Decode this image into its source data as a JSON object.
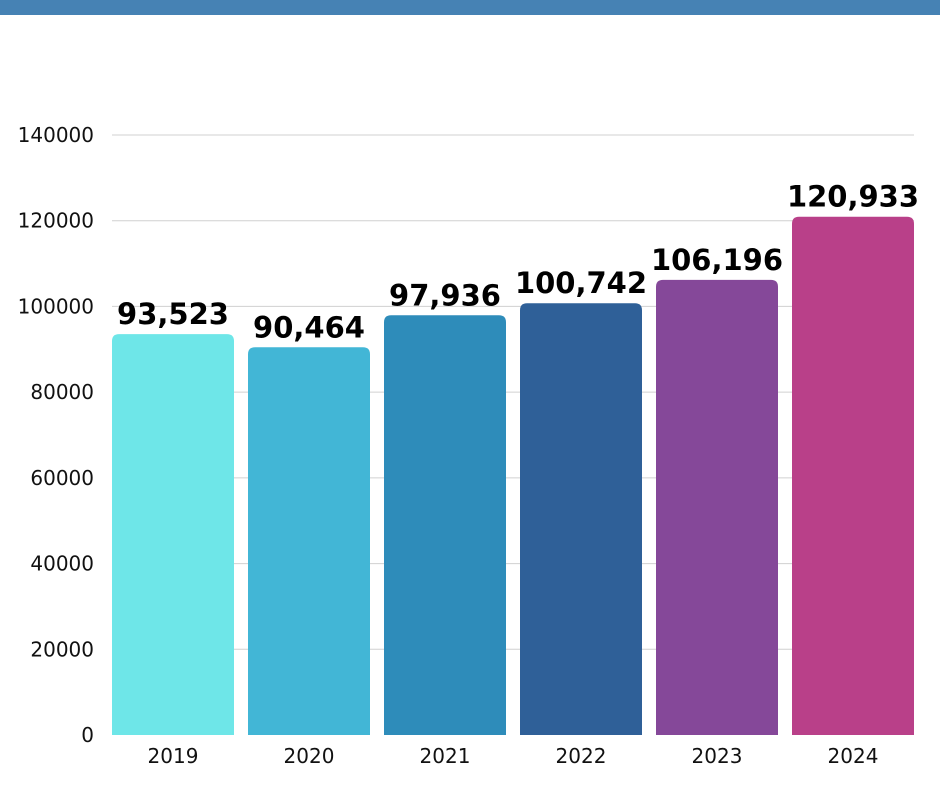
{
  "chart_data": {
    "type": "bar",
    "title": "",
    "xlabel": "",
    "ylabel": "",
    "categories": [
      "2019",
      "2020",
      "2021",
      "2022",
      "2023",
      "2024"
    ],
    "values": [
      93523,
      90464,
      97936,
      100742,
      106196,
      120933
    ],
    "data_labels": [
      "93,523",
      "90,464",
      "97,936",
      "100,742",
      "106,196",
      "120,933"
    ],
    "colors": [
      "#6ee6e8",
      "#42b6d6",
      "#2e8cba",
      "#2f6098",
      "#854899",
      "#b94089"
    ],
    "ylim": [
      0,
      140000
    ],
    "yticks": [
      0,
      20000,
      40000,
      60000,
      80000,
      100000,
      120000,
      140000
    ],
    "ytick_labels": [
      "0",
      "20000",
      "40000",
      "60000",
      "80000",
      "100000",
      "120000",
      "140000"
    ],
    "grid": true,
    "legend": "none"
  },
  "theme": {
    "top_bar_color": "#4682b4",
    "grid_color": "#d0d0d0"
  }
}
